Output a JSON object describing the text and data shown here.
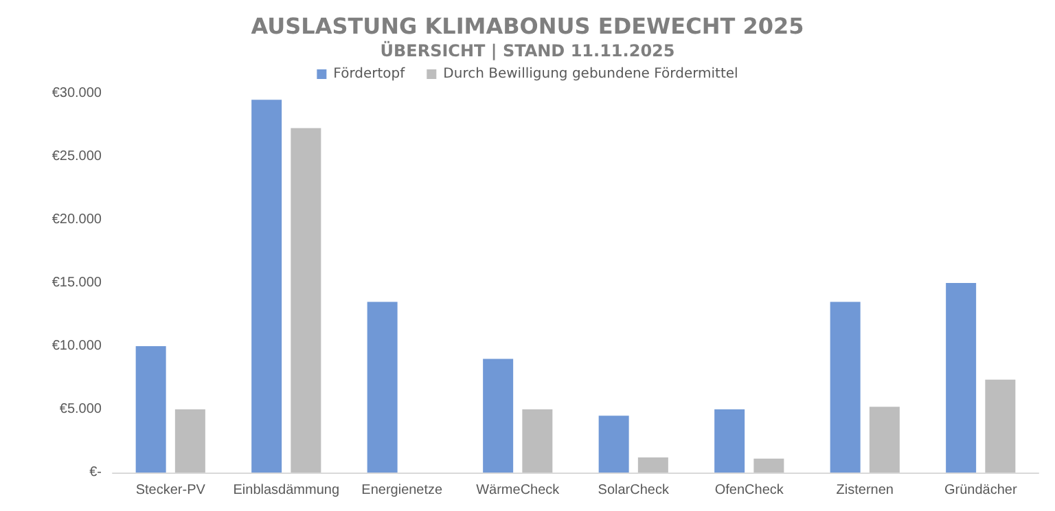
{
  "chart_data": {
    "type": "bar",
    "title": "AUSLASTUNG KLIMABONUS EDEWECHT 2025",
    "subtitle": "ÜBERSICHT | STAND 11.11.2025",
    "categories": [
      "Stecker-PV",
      "Einblasdämmung",
      "Energienetze",
      "WärmeCheck",
      "SolarCheck",
      "OfenCheck",
      "Zisternen",
      "Gründächer"
    ],
    "series": [
      {
        "name": "Fördertopf",
        "color": "#7098d6",
        "values": [
          10000,
          29500,
          13500,
          9000,
          4500,
          5000,
          13500,
          15000
        ]
      },
      {
        "name": "Durch Bewilligung gebundene Fördermittel",
        "color": "#bdbdbd",
        "values": [
          5000,
          27250,
          0,
          5000,
          1200,
          1100,
          5200,
          7350
        ]
      }
    ],
    "ylim": [
      0,
      30000
    ],
    "yticks": [
      {
        "value": 0,
        "label": "€-"
      },
      {
        "value": 5000,
        "label": "€5.000"
      },
      {
        "value": 10000,
        "label": "€10.000"
      },
      {
        "value": 15000,
        "label": "€15.000"
      },
      {
        "value": 20000,
        "label": "€20.000"
      },
      {
        "value": 25000,
        "label": "€25.000"
      },
      {
        "value": 30000,
        "label": "€30.000"
      }
    ],
    "grid": false,
    "legend": "top"
  }
}
